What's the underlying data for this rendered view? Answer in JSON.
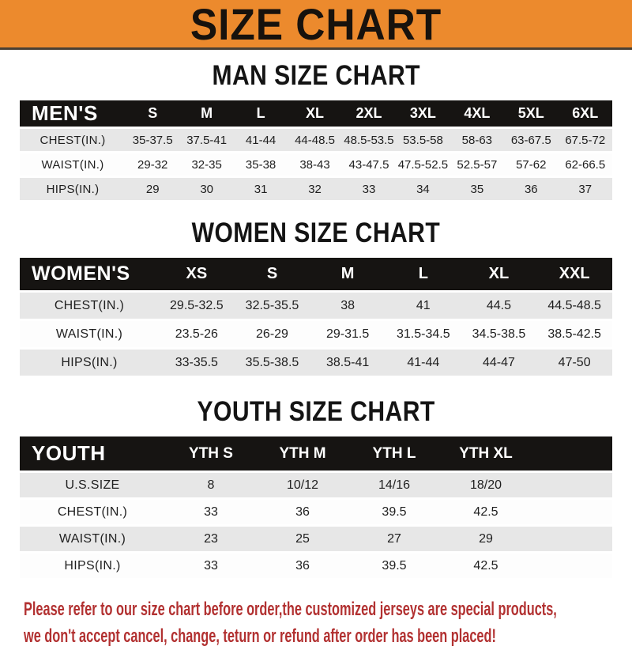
{
  "banner": {
    "title": "SIZE CHART",
    "bg_color": "#EC8A2D",
    "text_color": "#17120d"
  },
  "colors": {
    "table_header_bg": "#161412",
    "table_header_text": "#ffffff",
    "row_stripe_gray": "#E7E7E7",
    "row_stripe_white": "#FDFDFD",
    "notice_red": "#B23131"
  },
  "chart_data": [
    {
      "type": "table",
      "title": "MAN SIZE CHART",
      "header_label": "MEN'S",
      "columns": [
        "S",
        "M",
        "L",
        "XL",
        "2XL",
        "3XL",
        "4XL",
        "5XL",
        "6XL"
      ],
      "rows": [
        {
          "label": "CHEST(IN.)",
          "values": [
            "35-37.5",
            "37.5-41",
            "41-44",
            "44-48.5",
            "48.5-53.5",
            "53.5-58",
            "58-63",
            "63-67.5",
            "67.5-72"
          ]
        },
        {
          "label": "WAIST(IN.)",
          "values": [
            "29-32",
            "32-35",
            "35-38",
            "38-43",
            "43-47.5",
            "47.5-52.5",
            "52.5-57",
            "57-62",
            "62-66.5"
          ]
        },
        {
          "label": "HIPS(IN.)",
          "values": [
            "29",
            "30",
            "31",
            "32",
            "33",
            "34",
            "35",
            "36",
            "37"
          ]
        }
      ]
    },
    {
      "type": "table",
      "title": "WOMEN SIZE CHART",
      "header_label": "WOMEN'S",
      "columns": [
        "XS",
        "S",
        "M",
        "L",
        "XL",
        "XXL"
      ],
      "rows": [
        {
          "label": "CHEST(IN.)",
          "values": [
            "29.5-32.5",
            "32.5-35.5",
            "38",
            "41",
            "44.5",
            "44.5-48.5"
          ]
        },
        {
          "label": "WAIST(IN.)",
          "values": [
            "23.5-26",
            "26-29",
            "29-31.5",
            "31.5-34.5",
            "34.5-38.5",
            "38.5-42.5"
          ]
        },
        {
          "label": "HIPS(IN.)",
          "values": [
            "33-35.5",
            "35.5-38.5",
            "38.5-41",
            "41-44",
            "44-47",
            "47-50"
          ]
        }
      ]
    },
    {
      "type": "table",
      "title": "YOUTH SIZE CHART",
      "header_label": "YOUTH",
      "columns": [
        "YTH S",
        "YTH M",
        "YTH L",
        "YTH XL"
      ],
      "trailing_spacer": true,
      "rows": [
        {
          "label": "U.S.SIZE",
          "values": [
            "8",
            "10/12",
            "14/16",
            "18/20"
          ]
        },
        {
          "label": "CHEST(IN.)",
          "values": [
            "33",
            "36",
            "39.5",
            "42.5"
          ]
        },
        {
          "label": "WAIST(IN.)",
          "values": [
            "23",
            "25",
            "27",
            "29"
          ]
        },
        {
          "label": "HIPS(IN.)",
          "values": [
            "33",
            "36",
            "39.5",
            "42.5"
          ]
        }
      ]
    }
  ],
  "footer": {
    "line1": "Please refer to our size chart before order,the customized jerseys are special products,",
    "line2": "we don't accept cancel, change, teturn or refund after order has been placed!"
  }
}
